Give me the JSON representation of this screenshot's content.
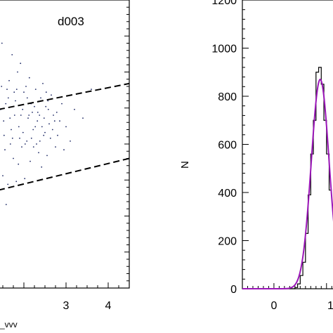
{
  "colors": {
    "scatter": "#1f2a66",
    "gauss": "#9b16b8",
    "hist": "#000000",
    "dashed": "#000000"
  },
  "chart_data": [
    {
      "type": "scatter",
      "panel_label": "d003",
      "xlabel": "_vvv",
      "ylabel": "",
      "xticks": [
        "3",
        "4"
      ],
      "xticks_values": [
        3,
        4
      ],
      "xlim": [
        1.4,
        4.5
      ],
      "ylim": [
        0,
        10
      ],
      "grid": false,
      "points": [
        [
          1.45,
          6.2
        ],
        [
          1.52,
          5.8
        ],
        [
          1.6,
          6.9
        ],
        [
          1.7,
          5.5
        ],
        [
          1.8,
          6.5
        ],
        [
          1.9,
          5.2
        ],
        [
          2.0,
          6.8
        ],
        [
          2.1,
          5.9
        ],
        [
          2.2,
          6.1
        ],
        [
          2.3,
          5.0
        ],
        [
          2.4,
          6.6
        ],
        [
          2.5,
          5.4
        ],
        [
          2.6,
          5.7
        ],
        [
          2.7,
          6.0
        ],
        [
          2.8,
          5.3
        ],
        [
          2.9,
          6.4
        ],
        [
          3.0,
          5.6
        ],
        [
          3.1,
          5.1
        ],
        [
          3.2,
          6.2
        ],
        [
          1.55,
          4.8
        ],
        [
          1.65,
          7.2
        ],
        [
          1.75,
          4.5
        ],
        [
          1.85,
          7.5
        ],
        [
          1.95,
          4.9
        ],
        [
          2.05,
          7.0
        ],
        [
          2.15,
          4.4
        ],
        [
          2.25,
          6.3
        ],
        [
          2.35,
          4.7
        ],
        [
          2.45,
          7.1
        ],
        [
          2.55,
          4.6
        ],
        [
          2.65,
          6.7
        ],
        [
          2.75,
          4.9
        ],
        [
          2.85,
          5.8
        ],
        [
          2.95,
          4.8
        ],
        [
          1.5,
          3.9
        ],
        [
          1.62,
          3.6
        ],
        [
          1.72,
          8.1
        ],
        [
          1.82,
          3.7
        ],
        [
          1.92,
          7.8
        ],
        [
          2.02,
          3.8
        ],
        [
          2.12,
          6.0
        ],
        [
          2.22,
          5.5
        ],
        [
          2.32,
          5.8
        ],
        [
          2.42,
          4.2
        ],
        [
          2.52,
          6.3
        ],
        [
          1.48,
          8.5
        ],
        [
          1.58,
          2.9
        ],
        [
          1.68,
          5.0
        ],
        [
          1.78,
          6.0
        ],
        [
          1.88,
          5.6
        ],
        [
          1.98,
          5.4
        ],
        [
          2.08,
          6.6
        ],
        [
          2.18,
          5.2
        ],
        [
          2.28,
          6.9
        ],
        [
          2.38,
          5.1
        ],
        [
          2.48,
          5.9
        ],
        [
          2.58,
          6.2
        ],
        [
          2.68,
          5.5
        ],
        [
          2.78,
          6.1
        ],
        [
          1.47,
          7.0
        ],
        [
          1.57,
          6.4
        ],
        [
          1.67,
          5.9
        ],
        [
          1.77,
          6.8
        ],
        [
          1.87,
          4.3
        ],
        [
          1.97,
          6.2
        ],
        [
          2.07,
          5.1
        ],
        [
          2.17,
          6.4
        ],
        [
          2.27,
          5.6
        ],
        [
          2.37,
          6.0
        ],
        [
          2.47,
          5.3
        ],
        [
          2.57,
          6.5
        ],
        [
          3.4,
          5.9
        ],
        [
          3.6,
          6.9
        ],
        [
          1.53,
          5.3
        ],
        [
          1.63,
          6.6
        ],
        [
          1.73,
          5.2
        ],
        [
          1.83,
          6.9
        ],
        [
          1.93,
          6.0
        ],
        [
          2.03,
          5.0
        ],
        [
          2.13,
          7.3
        ],
        [
          2.23,
          4.9
        ],
        [
          2.33,
          6.1
        ],
        [
          2.43,
          5.6
        ],
        [
          2.53,
          6.8
        ],
        [
          2.63,
          5.2
        ],
        [
          2.73,
          5.8
        ]
      ],
      "lines": [
        {
          "style": "dashed",
          "x": [
            1.4,
            4.5
          ],
          "y": [
            6.2,
            7.1
          ]
        },
        {
          "style": "dashed",
          "x": [
            1.4,
            4.5
          ],
          "y": [
            3.4,
            4.5
          ]
        }
      ]
    },
    {
      "type": "histogram",
      "xlabel": "",
      "ylabel": "N",
      "xlim": [
        -0.6,
        1.15
      ],
      "ylim": [
        0,
        1200
      ],
      "xticks": [
        "0"
      ],
      "xticks_values": [
        0
      ],
      "xtick_partial_label": "1",
      "yticks": [
        "0",
        "200",
        "400",
        "600",
        "800",
        "1000",
        "1200"
      ],
      "yticks_values": [
        0,
        200,
        400,
        600,
        800,
        1000,
        1200
      ],
      "grid": false,
      "bin_edges": [
        0.4,
        0.45,
        0.5,
        0.55,
        0.6,
        0.65,
        0.7,
        0.75,
        0.8,
        0.85,
        0.9,
        0.95,
        1.0,
        1.05,
        1.1
      ],
      "counts": [
        5,
        20,
        55,
        110,
        230,
        390,
        560,
        700,
        900,
        920,
        850,
        700,
        560,
        410
      ],
      "gaussian": {
        "amplitude": 870,
        "mean": 0.88,
        "sigma": 0.17
      }
    }
  ]
}
